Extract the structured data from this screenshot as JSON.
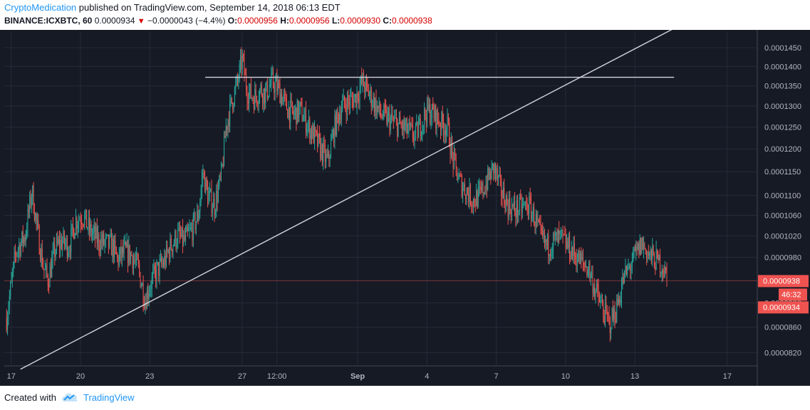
{
  "header": {
    "author": "CryptoMedication",
    "published": "published on TradingView.com, September 14, 2018 06:13 EDT",
    "symbol": "BINANCE:ICXBTC, 60",
    "last": "0.0000934",
    "change": "−0.0000043 (−4.4%)",
    "o_label": "O:",
    "o_val": "0.0000956",
    "h_label": "H:",
    "h_val": "0.0000956",
    "l_label": "L:",
    "l_val": "0.0000930",
    "c_label": "C:",
    "c_val": "0.0000938"
  },
  "footer": {
    "created_with": "Created with",
    "brand": "TradingView"
  },
  "colors": {
    "background": "#161a25",
    "grid": "#242a38",
    "up": "#26a69a",
    "down": "#ef5350",
    "trendline": "#d1d4dc",
    "price_label": "#ef5350"
  },
  "chart_data": {
    "type": "candlestick",
    "interval": "60 (1 hour)",
    "y_scale": "logarithmic",
    "ylim": [
      8e-05,
      0.0001495
    ],
    "y_ticks": [
      "0.0000820",
      "0.0000860",
      "0.0000900",
      "0.0000980",
      "0.0001020",
      "0.0001060",
      "0.0001100",
      "0.0001150",
      "0.0001200",
      "0.0001250",
      "0.0001300",
      "0.0001350",
      "0.0001400",
      "0.0001450"
    ],
    "x_ticks": [
      "17",
      "20",
      "23",
      "27",
      "12:00",
      "Sep",
      "4",
      "7",
      "10",
      "13",
      "17"
    ],
    "x_tick_days": [
      17,
      20,
      23,
      27,
      28.5,
      32,
      35,
      38,
      41,
      44,
      48
    ],
    "xlim_days": [
      16.7,
      49.3
    ],
    "last_price_label": "0.0000938",
    "countdown_label": "46:32",
    "current_price_label": "0.0000934",
    "close_path": [
      {
        "d": 16.8,
        "v": 8.75e-05
      },
      {
        "d": 17.2,
        "v": 9.9e-05
      },
      {
        "d": 17.6,
        "v": 0.000102
      },
      {
        "d": 17.9,
        "v": 0.000111
      },
      {
        "d": 18.1,
        "v": 0.000104
      },
      {
        "d": 18.4,
        "v": 9.6e-05
      },
      {
        "d": 18.6,
        "v": 9.4e-05
      },
      {
        "d": 18.9,
        "v": 9.95e-05
      },
      {
        "d": 19.2,
        "v": 0.000101
      },
      {
        "d": 19.5,
        "v": 0.0001
      },
      {
        "d": 19.8,
        "v": 0.000105
      },
      {
        "d": 20.1,
        "v": 0.000106
      },
      {
        "d": 20.4,
        "v": 0.000103
      },
      {
        "d": 20.8,
        "v": 0.000101
      },
      {
        "d": 21.1,
        "v": 0.0001005
      },
      {
        "d": 21.4,
        "v": 0.0001
      },
      {
        "d": 21.6,
        "v": 9.75e-05
      },
      {
        "d": 21.9,
        "v": 9.9e-05
      },
      {
        "d": 22.2,
        "v": 9.85e-05
      },
      {
        "d": 22.5,
        "v": 9.6e-05
      },
      {
        "d": 22.8,
        "v": 9.05e-05
      },
      {
        "d": 23.0,
        "v": 9.3e-05
      },
      {
        "d": 23.3,
        "v": 9.55e-05
      },
      {
        "d": 23.6,
        "v": 9.7e-05
      },
      {
        "d": 23.9,
        "v": 0.0001
      },
      {
        "d": 24.2,
        "v": 0.000102
      },
      {
        "d": 24.5,
        "v": 0.000101
      },
      {
        "d": 24.8,
        "v": 0.000103
      },
      {
        "d": 25.1,
        "v": 0.000106
      },
      {
        "d": 25.3,
        "v": 0.000115
      },
      {
        "d": 25.5,
        "v": 0.00011
      },
      {
        "d": 25.8,
        "v": 0.000108
      },
      {
        "d": 26.1,
        "v": 0.000114
      },
      {
        "d": 26.3,
        "v": 0.000125
      },
      {
        "d": 26.5,
        "v": 0.00013
      },
      {
        "d": 26.8,
        "v": 0.000136
      },
      {
        "d": 27.0,
        "v": 0.000142
      },
      {
        "d": 27.2,
        "v": 0.000134
      },
      {
        "d": 27.5,
        "v": 0.000132
      },
      {
        "d": 27.8,
        "v": 0.000134
      },
      {
        "d": 28.0,
        "v": 0.000133
      },
      {
        "d": 28.3,
        "v": 0.000136
      },
      {
        "d": 28.6,
        "v": 0.000134
      },
      {
        "d": 28.9,
        "v": 0.00013
      },
      {
        "d": 29.2,
        "v": 0.000128
      },
      {
        "d": 29.5,
        "v": 0.000129
      },
      {
        "d": 29.8,
        "v": 0.000126
      },
      {
        "d": 30.1,
        "v": 0.000123
      },
      {
        "d": 30.4,
        "v": 0.00012
      },
      {
        "d": 30.7,
        "v": 0.000117
      },
      {
        "d": 31.0,
        "v": 0.000125
      },
      {
        "d": 31.3,
        "v": 0.00013
      },
      {
        "d": 31.6,
        "v": 0.000131
      },
      {
        "d": 31.9,
        "v": 0.000132
      },
      {
        "d": 32.2,
        "v": 0.000136
      },
      {
        "d": 32.4,
        "v": 0.000134
      },
      {
        "d": 32.7,
        "v": 0.000131
      },
      {
        "d": 33.0,
        "v": 0.000128
      },
      {
        "d": 33.3,
        "v": 0.000127
      },
      {
        "d": 33.6,
        "v": 0.000126
      },
      {
        "d": 33.9,
        "v": 0.000125
      },
      {
        "d": 34.2,
        "v": 0.000124
      },
      {
        "d": 34.5,
        "v": 0.000123
      },
      {
        "d": 34.8,
        "v": 0.0001265
      },
      {
        "d": 35.0,
        "v": 0.000129
      },
      {
        "d": 35.3,
        "v": 0.000128
      },
      {
        "d": 35.6,
        "v": 0.000126
      },
      {
        "d": 35.9,
        "v": 0.000125
      },
      {
        "d": 36.1,
        "v": 0.000118
      },
      {
        "d": 36.4,
        "v": 0.000113
      },
      {
        "d": 36.7,
        "v": 0.000111
      },
      {
        "d": 37.0,
        "v": 0.000109
      },
      {
        "d": 37.3,
        "v": 0.00011
      },
      {
        "d": 37.6,
        "v": 0.000113
      },
      {
        "d": 37.9,
        "v": 0.000116
      },
      {
        "d": 38.2,
        "v": 0.000111
      },
      {
        "d": 38.5,
        "v": 0.000108
      },
      {
        "d": 38.8,
        "v": 0.000107
      },
      {
        "d": 39.1,
        "v": 0.0001075
      },
      {
        "d": 39.4,
        "v": 0.000108
      },
      {
        "d": 39.7,
        "v": 0.000105
      },
      {
        "d": 39.9,
        "v": 0.000102
      },
      {
        "d": 40.2,
        "v": 0.0001
      },
      {
        "d": 40.5,
        "v": 0.000101
      },
      {
        "d": 40.8,
        "v": 0.0001015
      },
      {
        "d": 41.1,
        "v": 0.0001
      },
      {
        "d": 41.4,
        "v": 9.85e-05
      },
      {
        "d": 41.7,
        "v": 9.7e-05
      },
      {
        "d": 42.0,
        "v": 9.6e-05
      },
      {
        "d": 42.3,
        "v": 9.2e-05
      },
      {
        "d": 42.6,
        "v": 8.9e-05
      },
      {
        "d": 42.9,
        "v": 8.65e-05
      },
      {
        "d": 43.2,
        "v": 8.9e-05
      },
      {
        "d": 43.5,
        "v": 9.4e-05
      },
      {
        "d": 43.8,
        "v": 9.65e-05
      },
      {
        "d": 44.1,
        "v": 9.9e-05
      },
      {
        "d": 44.3,
        "v": 0.0001005
      },
      {
        "d": 44.6,
        "v": 9.85e-05
      },
      {
        "d": 44.9,
        "v": 9.75e-05
      },
      {
        "d": 45.2,
        "v": 9.65e-05
      },
      {
        "d": 45.4,
        "v": 9.38e-05
      }
    ],
    "drawings": [
      {
        "type": "trendline",
        "from": {
          "d": 17.4,
          "v": 7.95e-05
        },
        "to": {
          "d": 45.6,
          "v": 0.00015
        }
      },
      {
        "type": "horizontal",
        "from": {
          "d": 25.4,
          "v": 0.0001372
        },
        "to": {
          "d": 45.7,
          "v": 0.0001372
        }
      }
    ]
  }
}
